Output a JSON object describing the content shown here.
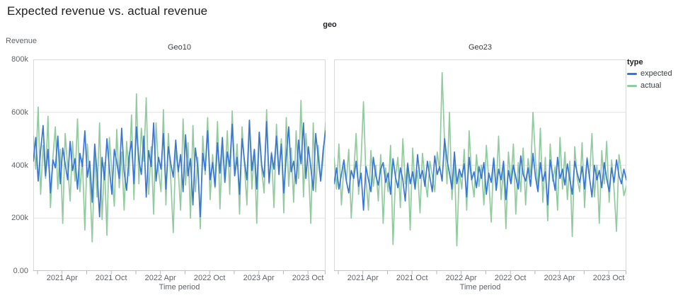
{
  "title": "Expected revenue vs. actual revenue",
  "facet_header": "geo",
  "y_axis": {
    "title": "Revenue",
    "ticks": [
      {
        "label": "0.00",
        "value": 0
      },
      {
        "label": "200k",
        "value": 200
      },
      {
        "label": "400k",
        "value": 400
      },
      {
        "label": "600k",
        "value": 600
      },
      {
        "label": "800k",
        "value": 800
      }
    ]
  },
  "x_axis": {
    "title": "Time period",
    "major_ticks": [
      {
        "label": "2021 Apr",
        "month": 3
      },
      {
        "label": "2021 Oct",
        "month": 9
      },
      {
        "label": "2022 Apr",
        "month": 15
      },
      {
        "label": "2022 Oct",
        "month": 21
      },
      {
        "label": "2023 Apr",
        "month": 27
      },
      {
        "label": "2023 Oct",
        "month": 33
      }
    ],
    "minor_tick_months": [
      0,
      6,
      12,
      18,
      24,
      30
    ]
  },
  "legend": {
    "title": "type",
    "items": [
      {
        "label": "expected",
        "color": "#3877d9"
      },
      {
        "label": "actual",
        "color": "#92cb9f"
      }
    ]
  },
  "colors": {
    "expected": "#3877d9",
    "actual": "#92cb9f",
    "gridline": "#e4e4e4",
    "panel_border": "#d9d9d9",
    "axis_line": "#c2c2c2",
    "tick": "#b5b5b5",
    "text_muted": "#5f6368"
  },
  "chart_data": {
    "type": "line",
    "title": "Expected revenue vs. actual revenue",
    "xlabel": "Time period",
    "ylabel": "Revenue",
    "unit": "thousands (values are k, i.e. 400 = 400,000)",
    "x_domain": [
      "2021 Jan",
      "2023 Dec"
    ],
    "x_note": "weekly-cadence noisy series, ~120 samples per series, evenly spaced across domain",
    "ylim": [
      0,
      800
    ],
    "grid": "horizontal only at 200k/400k/600k",
    "legend_position": "right",
    "facets": [
      {
        "title": "Geo10",
        "series": [
          {
            "name": "expected",
            "color": "#3877d9",
            "values": [
              415,
              505,
              340,
              455,
              550,
              360,
              460,
              295,
              420,
              390,
              510,
              330,
              465,
              405,
              345,
              490,
              380,
              425,
              310,
              445,
              395,
              530,
              355,
              415,
              260,
              480,
              370,
              205,
              430,
              345,
              500,
              385,
              290,
              460,
              410,
              350,
              540,
              375,
              305,
              435,
              490,
              330,
              545,
              420,
              365,
              510,
              280,
              455,
              395,
              560,
              340,
              430,
              385,
              520,
              310,
              470,
              405,
              355,
              495,
              375,
              440,
              300,
              515,
              360,
              425,
              250,
              465,
              390,
              205,
              445,
              380,
              530,
              345,
              410,
              320,
              485,
              370,
              505,
              335,
              450,
              395,
              555,
              360,
              430,
              290,
              500,
              415,
              345,
              570,
              380,
              460,
              310,
              525,
              400,
              355,
              565,
              335,
              445,
              385,
              510,
              365,
              480,
              295,
              435,
              545,
              375,
              415,
              330,
              495,
              405,
              560,
              350,
              470,
              390,
              305,
              520,
              430,
              340,
              455,
              530
            ]
          },
          {
            "name": "actual",
            "color": "#92cb9f",
            "values": [
              510,
              385,
              620,
              290,
              475,
              350,
              585,
              240,
              430,
              545,
              310,
              460,
              180,
              520,
              395,
              265,
              490,
              340,
              575,
              300,
              425,
              155,
              480,
              350,
              110,
              440,
              280,
              560,
              195,
              410,
              135,
              505,
              370,
              245,
              535,
              315,
              450,
              230,
              490,
              360,
              590,
              270,
              670,
              330,
              540,
              415,
              655,
              290,
              470,
              215,
              560,
              380,
              300,
              610,
              250,
              520,
              340,
              145,
              455,
              380,
              230,
              575,
              325,
              485,
              200,
              550,
              300,
              430,
              160,
              510,
              365,
              580,
              270,
              440,
              315,
              565,
              235,
              475,
              345,
              530,
              290,
              605,
              360,
              480,
              215,
              545,
              395,
              250,
              570,
              310,
              460,
              180,
              525,
              380,
              295,
              610,
              330,
              450,
              240,
              555,
              375,
              500,
              220,
              580,
              320,
              465,
              260,
              530,
              350,
              645,
              280,
              520,
              395,
              180,
              560,
              300,
              475,
              340,
              420,
              560
            ]
          }
        ]
      },
      {
        "title": "Geo23",
        "series": [
          {
            "name": "expected",
            "color": "#3877d9",
            "values": [
              330,
              390,
              310,
              365,
              420,
              340,
              295,
              380,
              350,
              415,
              320,
              370,
              230,
              395,
              345,
              300,
              430,
              360,
              325,
              385,
              410,
              335,
              370,
              290,
              425,
              355,
              315,
              390,
              345,
              265,
              405,
              330,
              375,
              310,
              440,
              350,
              380,
              320,
              415,
              355,
              300,
              435,
              365,
              395,
              340,
              500,
              420,
              370,
              310,
              450,
              330,
              385,
              355,
              405,
              280,
              430,
              345,
              375,
              315,
              395,
              350,
              410,
              290,
              370,
              335,
              425,
              305,
              385,
              345,
              415,
              270,
              380,
              330,
              400,
              355,
              310,
              435,
              365,
              340,
              390,
              320,
              445,
              355,
              300,
              410,
              340,
              375,
              250,
              420,
              360,
              305,
              430,
              350,
              385,
              325,
              405,
              345,
              290,
              415,
              370,
              335,
              395,
              310,
              425,
              355,
              280,
              400,
              345,
              380,
              315,
              410,
              350,
              300,
              390,
              335,
              420,
              360,
              330,
              385,
              345
            ]
          },
          {
            "name": "actual",
            "color": "#92cb9f",
            "values": [
              430,
              310,
              480,
              250,
              395,
              340,
              460,
              200,
              370,
              520,
              290,
              420,
              640,
              350,
              230,
              455,
              320,
              400,
              265,
              440,
              180,
              390,
              300,
              475,
              100,
              355,
              430,
              240,
              500,
              330,
              410,
              155,
              465,
              310,
              380,
              220,
              445,
              350,
              280,
              415,
              360,
              300,
              450,
              380,
              750,
              480,
              330,
              600,
              270,
              420,
              95,
              380,
              310,
              460,
              230,
              530,
              350,
              280,
              440,
              320,
              400,
              250,
              475,
              345,
              185,
              430,
              310,
              510,
              270,
              390,
              160,
              450,
              335,
              480,
              215,
              410,
              300,
              465,
              250,
              425,
              355,
              600,
              420,
              310,
              540,
              260,
              430,
              190,
              480,
              340,
              395,
              230,
              505,
              310,
              450,
              270,
              415,
              130,
              470,
              350,
              300,
              485,
              240,
              430,
              350,
              520,
              280,
              400,
              180,
              455,
              330,
              490,
              260,
              420,
              310,
              150,
              440,
              370,
              285,
              320
            ]
          }
        ]
      }
    ]
  }
}
